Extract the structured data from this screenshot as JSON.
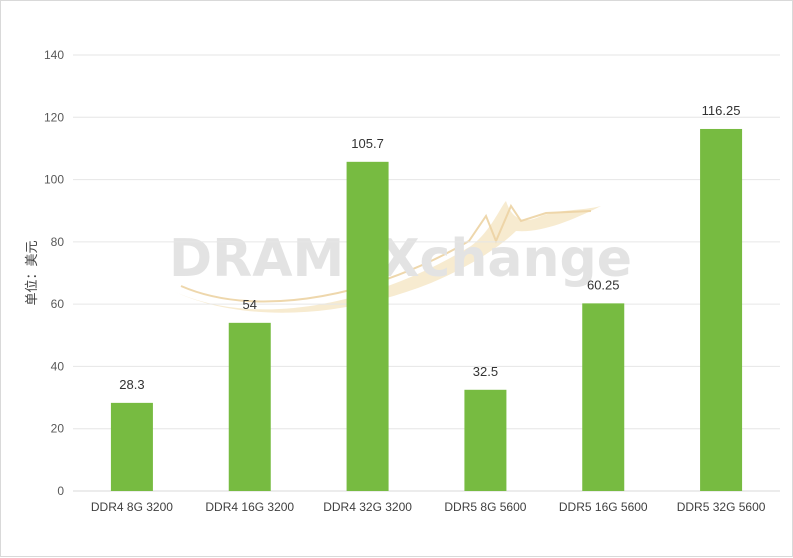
{
  "chart_data": {
    "type": "bar",
    "categories": [
      "DDR4 8G 3200",
      "DDR4 16G 3200",
      "DDR4 32G 3200",
      "DDR5 8G 5600",
      "DDR5 16G 5600",
      "DDR5 32G 5600"
    ],
    "values": [
      28.3,
      54,
      105.7,
      32.5,
      60.25,
      116.25
    ],
    "data_labels": [
      "28.3",
      "54",
      "105.7",
      "32.5",
      "60.25",
      "116.25"
    ],
    "ylabel": "单位：美元",
    "ylim": [
      0,
      140
    ],
    "yticks": [
      0,
      20,
      40,
      60,
      80,
      100,
      120,
      140
    ],
    "grid": true,
    "bar_color": "#77bb41",
    "watermark": "DRAMeXchange"
  }
}
